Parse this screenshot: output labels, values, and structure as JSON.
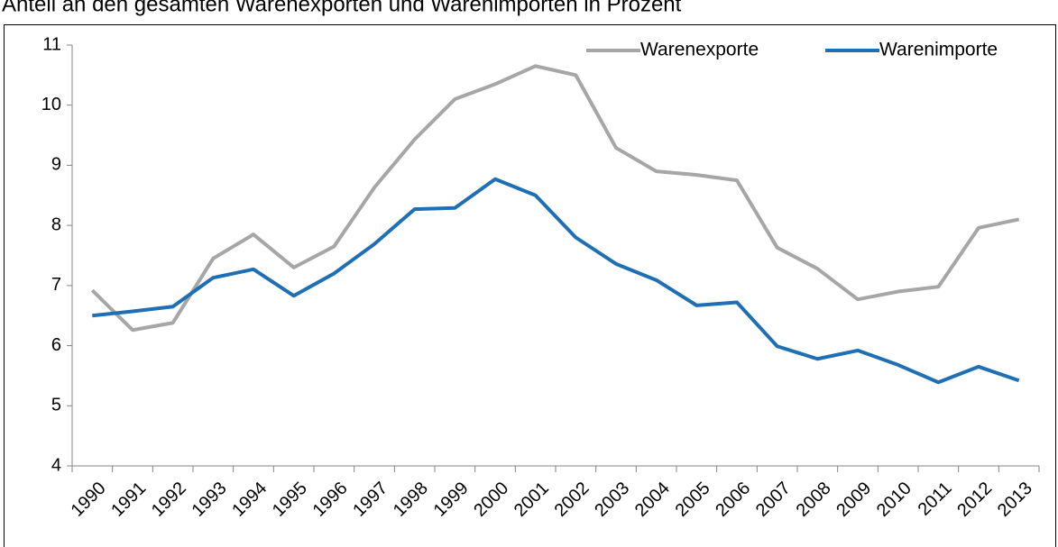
{
  "chart_data": {
    "type": "line",
    "title": "Anteil an den gesamten Warenexporten und Warenimporten in Prozent",
    "categories": [
      "1990",
      "1991",
      "1992",
      "1993",
      "1994",
      "1995",
      "1996",
      "1997",
      "1998",
      "1999",
      "2000",
      "2001",
      "2002",
      "2003",
      "2004",
      "2005",
      "2006",
      "2007",
      "2008",
      "2009",
      "2010",
      "2011",
      "2012",
      "2013"
    ],
    "series": [
      {
        "name": "Warenexporte",
        "color": "#a6a6a6",
        "values": [
          6.92,
          6.26,
          6.38,
          7.45,
          7.85,
          7.3,
          7.65,
          8.63,
          9.43,
          10.1,
          10.35,
          10.65,
          10.5,
          9.29,
          8.9,
          8.84,
          8.75,
          7.63,
          7.28,
          6.77,
          6.9,
          6.98,
          7.96,
          8.1
        ]
      },
      {
        "name": "Warenimporte",
        "color": "#1f6fb5",
        "values": [
          6.5,
          6.57,
          6.65,
          7.13,
          7.27,
          6.83,
          7.2,
          7.69,
          8.27,
          8.29,
          8.77,
          8.5,
          7.8,
          7.36,
          7.09,
          6.67,
          6.72,
          5.99,
          5.78,
          5.92,
          5.68,
          5.39,
          5.65,
          5.42
        ]
      }
    ],
    "ylim": [
      4,
      11
    ],
    "yticks": [
      4,
      5,
      6,
      7,
      8,
      9,
      10,
      11
    ],
    "legend": "top-right",
    "grid": false
  }
}
